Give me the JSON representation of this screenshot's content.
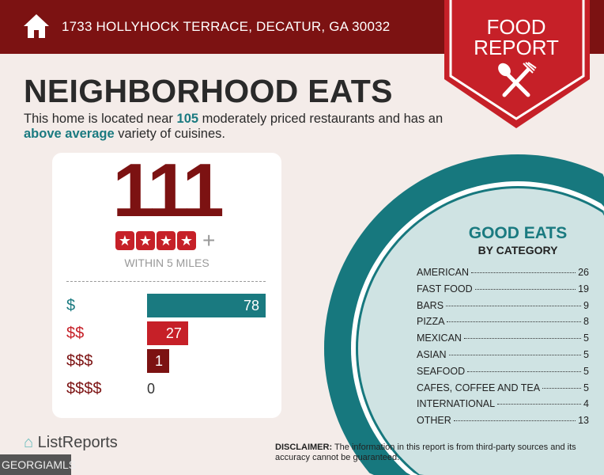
{
  "header": {
    "address": "1733 HOLLYHOCK TERRACE, DECATUR, GA 30032",
    "icon": "home-icon"
  },
  "badge": {
    "line1": "FOOD",
    "line2": "REPORT",
    "icon": "utensils-icon"
  },
  "title": "NEIGHBORHOOD EATS",
  "intro": {
    "pre": "This home is located near ",
    "count": "105",
    "mid": " moderately priced restaurants and has an ",
    "variety": "above average",
    "post": " variety of cuisines."
  },
  "card": {
    "total": "111",
    "rating_stars": 4,
    "rating_plus": "+",
    "within": "WITHIN 5 MILES",
    "price_levels": [
      {
        "label": "$",
        "value": 78,
        "color": "#1a7a80"
      },
      {
        "label": "$$",
        "value": 27,
        "color": "#c62028"
      },
      {
        "label": "$$$",
        "value": 1,
        "color": "#7c1212"
      },
      {
        "label": "$$$$",
        "value": 0,
        "color": "#7c1212"
      }
    ]
  },
  "categories": {
    "title": "GOOD EATS",
    "subtitle": "BY CATEGORY",
    "items": [
      {
        "name": "AMERICAN",
        "count": "26"
      },
      {
        "name": "FAST FOOD",
        "count": "19"
      },
      {
        "name": "BARS",
        "count": "9"
      },
      {
        "name": "PIZZA",
        "count": "8"
      },
      {
        "name": "MEXICAN",
        "count": "5"
      },
      {
        "name": "ASIAN",
        "count": "5"
      },
      {
        "name": "SEAFOOD",
        "count": "5"
      },
      {
        "name": "CAFES, COFFEE AND TEA",
        "count": "5"
      },
      {
        "name": "INTERNATIONAL",
        "count": "4"
      },
      {
        "name": "OTHER",
        "count": "13"
      }
    ]
  },
  "footer": {
    "brand": "ListReports",
    "disclaimer_label": "DISCLAIMER:",
    "disclaimer": " The information in this report is from third-party sources and its accuracy cannot be guaranteed.",
    "watermark": "GEORGIAMLS"
  },
  "colors": {
    "dark_red": "#7c1212",
    "red": "#c62028",
    "teal": "#1a7a80",
    "light_teal": "#cfe3e3"
  }
}
